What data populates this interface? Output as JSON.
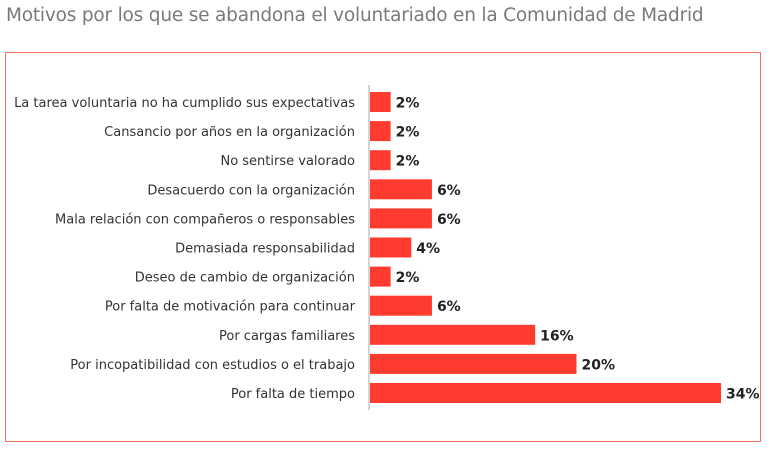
{
  "chart_data": {
    "type": "bar",
    "orientation": "horizontal",
    "title": "Motivos por los que se abandona el voluntariado en la Comunidad de Madrid",
    "categories": [
      "La tarea voluntaria no ha cumplido sus expectativas",
      "Cansancio por años en la organización",
      "No sentirse valorado",
      "Desacuerdo con la organización",
      "Mala relación con compañeros o responsables",
      "Demasiada responsabilidad",
      "Deseo de cambio de organización",
      "Por falta de motivación para continuar",
      "Por cargas familiares",
      "Por incopatibilidad con estudios o el trabajo",
      "Por falta de tiempo"
    ],
    "values": [
      2,
      2,
      2,
      6,
      6,
      4,
      2,
      6,
      16,
      20,
      34
    ],
    "value_labels": [
      "2%",
      "2%",
      "2%",
      "6%",
      "6%",
      "4%",
      "2%",
      "6%",
      "16%",
      "20%",
      "34%"
    ],
    "unit": "%",
    "xlim": [
      0,
      34
    ],
    "grid": false,
    "legend": "none",
    "colors": {
      "bar": "#ff3b2f",
      "frame": "#f26b5b",
      "axis": "#aaaaaa",
      "title": "#7a7a7a"
    }
  }
}
